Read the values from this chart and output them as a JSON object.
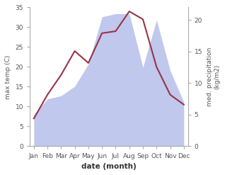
{
  "months": [
    "Jan",
    "Feb",
    "Mar",
    "Apr",
    "May",
    "Jun",
    "Jul",
    "Aug",
    "Sep",
    "Oct",
    "Nov",
    "Dec"
  ],
  "temp_max": [
    7.0,
    13.0,
    18.0,
    24.0,
    21.0,
    28.5,
    29.0,
    34.0,
    32.0,
    20.0,
    13.0,
    10.5
  ],
  "precipitation": [
    5.0,
    7.5,
    8.0,
    9.5,
    13.0,
    20.5,
    21.0,
    21.0,
    12.5,
    20.0,
    12.0,
    7.0
  ],
  "temp_color": "#993344",
  "precip_fill_color": "#c0c8ee",
  "left_ylim": [
    0,
    35
  ],
  "right_ylim": [
    0,
    22
  ],
  "left_yticks": [
    0,
    5,
    10,
    15,
    20,
    25,
    30,
    35
  ],
  "right_yticks": [
    0,
    5,
    10,
    15,
    20
  ],
  "ylabel_left": "max temp (C)",
  "ylabel_right": "med. precipitation\n(kg/m2)",
  "xlabel": "date (month)",
  "spine_color": "#aaaaaa",
  "tick_label_color": "#555555"
}
